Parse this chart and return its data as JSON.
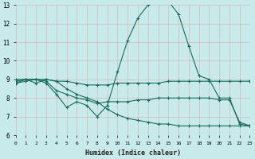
{
  "xlabel": "Humidex (Indice chaleur)",
  "bg_color": "#c8eaea",
  "grid_color": "#d4b8b8",
  "line_color": "#1a6b5a",
  "x_min": 0,
  "x_max": 23,
  "y_min": 6,
  "y_max": 13,
  "xtick_labels": [
    "0",
    "1",
    "2",
    "3",
    "4",
    "5",
    "6",
    "7",
    "8",
    "9",
    "10",
    "11",
    "12",
    "13",
    "14",
    "15",
    "16",
    "17",
    "18",
    "19",
    "20",
    "21",
    "22",
    "23"
  ],
  "ytick_labels": [
    "6",
    "7",
    "8",
    "9",
    "10",
    "11",
    "12",
    "13"
  ],
  "series": [
    {
      "x": [
        0,
        1,
        2,
        3,
        4,
        5,
        6,
        7,
        8,
        9,
        10,
        11,
        12,
        13,
        14,
        15,
        16,
        17,
        18,
        19,
        20,
        21,
        22,
        23
      ],
      "y": [
        8.9,
        9.0,
        9.0,
        8.8,
        8.2,
        7.5,
        7.8,
        7.6,
        7.0,
        7.6,
        9.4,
        11.1,
        12.3,
        13.0,
        13.2,
        13.2,
        12.5,
        10.8,
        9.2,
        9.0,
        8.0,
        8.0,
        6.6,
        6.5
      ]
    },
    {
      "x": [
        0,
        1,
        2,
        3,
        4,
        5,
        6,
        7,
        8,
        9,
        10,
        11,
        12,
        13,
        14,
        15,
        16,
        17,
        18,
        19,
        20,
        21,
        22,
        23
      ],
      "y": [
        9.0,
        9.0,
        9.0,
        9.0,
        8.9,
        8.9,
        8.8,
        8.7,
        8.7,
        8.7,
        8.8,
        8.8,
        8.8,
        8.8,
        8.8,
        8.9,
        8.9,
        8.9,
        8.9,
        8.9,
        8.9,
        8.9,
        8.9,
        8.9
      ]
    },
    {
      "x": [
        0,
        1,
        2,
        3,
        4,
        5,
        6,
        7,
        8,
        9,
        10,
        11,
        12,
        13,
        14,
        15,
        16,
        17,
        18,
        19,
        20,
        21,
        22,
        23
      ],
      "y": [
        8.8,
        8.9,
        9.0,
        8.9,
        8.4,
        8.2,
        8.0,
        7.9,
        7.7,
        7.8,
        7.8,
        7.8,
        7.9,
        7.9,
        8.0,
        8.0,
        8.0,
        8.0,
        8.0,
        8.0,
        7.9,
        7.9,
        6.7,
        6.5
      ]
    },
    {
      "x": [
        0,
        1,
        2,
        3,
        4,
        5,
        6,
        7,
        8,
        9,
        10,
        11,
        12,
        13,
        14,
        15,
        16,
        17,
        18,
        19,
        20,
        21,
        22,
        23
      ],
      "y": [
        8.8,
        9.0,
        8.8,
        9.0,
        8.9,
        8.5,
        8.2,
        8.0,
        7.8,
        7.4,
        7.1,
        6.9,
        6.8,
        6.7,
        6.6,
        6.6,
        6.5,
        6.5,
        6.5,
        6.5,
        6.5,
        6.5,
        6.5,
        6.5
      ]
    }
  ]
}
